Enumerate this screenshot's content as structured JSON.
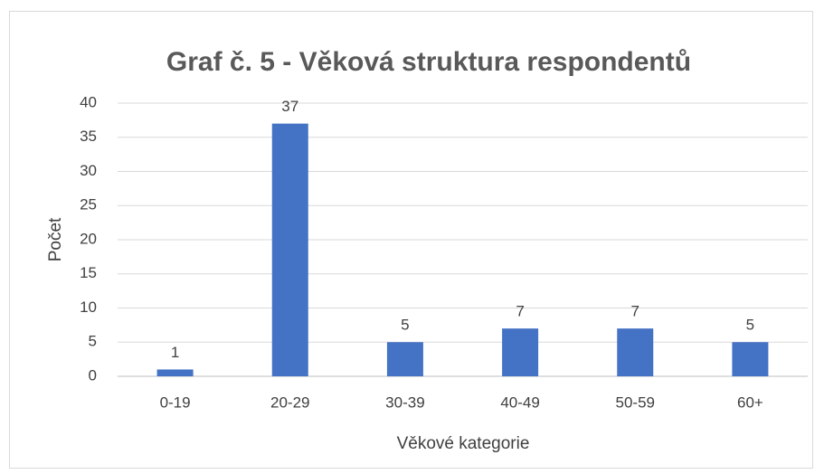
{
  "chart_data": {
    "type": "bar",
    "title": "Graf č. 5 - Věková struktura respondentů",
    "x_label": "Věkové kategorie",
    "y_label": "Počet",
    "categories": [
      "0-19",
      "20-29",
      "30-39",
      "40-49",
      "50-59",
      "60+"
    ],
    "values": [
      1,
      37,
      5,
      7,
      7,
      5
    ],
    "color": "#4472c4",
    "ylim": [
      0,
      40
    ],
    "yticks": [
      0,
      5,
      10,
      15,
      20,
      25,
      30,
      35,
      40
    ],
    "grid": true
  }
}
